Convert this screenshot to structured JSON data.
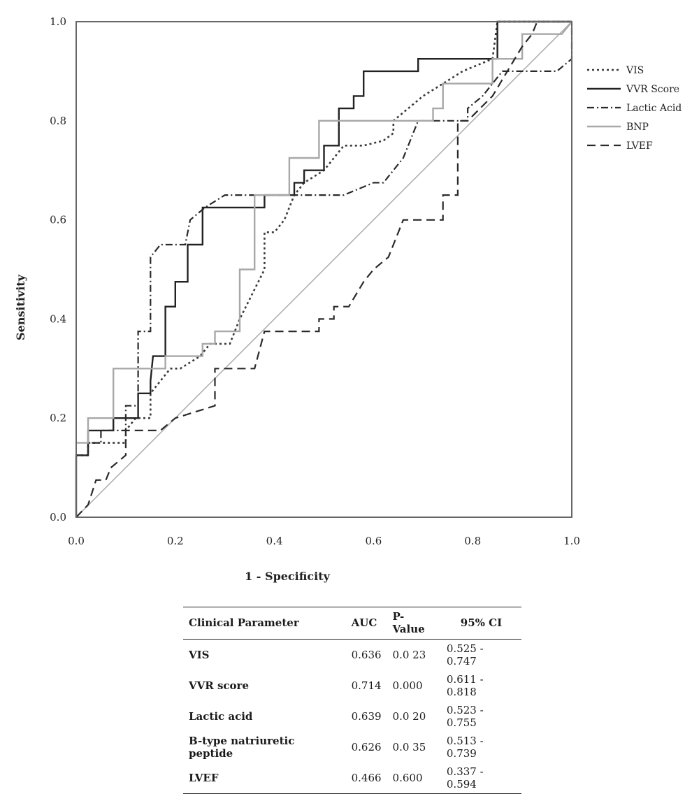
{
  "chart_data": {
    "type": "line",
    "xlabel": "1 - Specificity",
    "ylabel": "Sensitivity",
    "xlim": [
      0,
      1
    ],
    "ylim": [
      0,
      1
    ],
    "xticks": [
      "0.0",
      "0.2",
      "0.4",
      "0.6",
      "0.8",
      "1.0"
    ],
    "yticks": [
      "0.0",
      "0.2",
      "0.4",
      "0.6",
      "0.8",
      "1.0"
    ],
    "grid": false,
    "legend_position": "right",
    "series": [
      {
        "name": "VIS",
        "style": "dotted",
        "color": "#3a3a3a",
        "points": [
          [
            0,
            0.125
          ],
          [
            0.024,
            0.125
          ],
          [
            0.024,
            0.15
          ],
          [
            0.05,
            0.15
          ],
          [
            0.05,
            0.15
          ],
          [
            0.1,
            0.15
          ],
          [
            0.1,
            0.175
          ],
          [
            0.12,
            0.2
          ],
          [
            0.15,
            0.2
          ],
          [
            0.15,
            0.25
          ],
          [
            0.17,
            0.275
          ],
          [
            0.19,
            0.3
          ],
          [
            0.21,
            0.3
          ],
          [
            0.25,
            0.325
          ],
          [
            0.27,
            0.35
          ],
          [
            0.31,
            0.35
          ],
          [
            0.33,
            0.4
          ],
          [
            0.38,
            0.5
          ],
          [
            0.38,
            0.575
          ],
          [
            0.4,
            0.575
          ],
          [
            0.42,
            0.6
          ],
          [
            0.44,
            0.65
          ],
          [
            0.46,
            0.675
          ],
          [
            0.5,
            0.7
          ],
          [
            0.54,
            0.75
          ],
          [
            0.58,
            0.75
          ],
          [
            0.62,
            0.76
          ],
          [
            0.64,
            0.775
          ],
          [
            0.64,
            0.8
          ],
          [
            0.7,
            0.85
          ],
          [
            0.78,
            0.9
          ],
          [
            0.84,
            0.925
          ],
          [
            0.85,
            1.0
          ],
          [
            1.0,
            1.0
          ]
        ]
      },
      {
        "name": "VVR Score",
        "style": "solid",
        "color": "#222222",
        "points": [
          [
            0,
            0
          ],
          [
            0,
            0.125
          ],
          [
            0.024,
            0.125
          ],
          [
            0.024,
            0.175
          ],
          [
            0.075,
            0.175
          ],
          [
            0.075,
            0.2
          ],
          [
            0.1,
            0.2
          ],
          [
            0.125,
            0.2
          ],
          [
            0.125,
            0.25
          ],
          [
            0.15,
            0.25
          ],
          [
            0.15,
            0.275
          ],
          [
            0.155,
            0.325
          ],
          [
            0.18,
            0.325
          ],
          [
            0.18,
            0.425
          ],
          [
            0.2,
            0.425
          ],
          [
            0.2,
            0.475
          ],
          [
            0.225,
            0.475
          ],
          [
            0.225,
            0.55
          ],
          [
            0.255,
            0.55
          ],
          [
            0.255,
            0.625
          ],
          [
            0.38,
            0.625
          ],
          [
            0.38,
            0.65
          ],
          [
            0.44,
            0.65
          ],
          [
            0.44,
            0.675
          ],
          [
            0.46,
            0.675
          ],
          [
            0.46,
            0.7
          ],
          [
            0.5,
            0.7
          ],
          [
            0.5,
            0.75
          ],
          [
            0.52,
            0.75
          ],
          [
            0.53,
            0.75
          ],
          [
            0.53,
            0.825
          ],
          [
            0.56,
            0.825
          ],
          [
            0.56,
            0.85
          ],
          [
            0.58,
            0.85
          ],
          [
            0.58,
            0.9
          ],
          [
            0.69,
            0.9
          ],
          [
            0.69,
            0.925
          ],
          [
            0.85,
            0.925
          ],
          [
            0.85,
            1.0
          ],
          [
            1.0,
            1.0
          ]
        ]
      },
      {
        "name": "Lactic Acid",
        "style": "dashdot",
        "color": "#2a2a2a",
        "points": [
          [
            0,
            0.125
          ],
          [
            0.024,
            0.125
          ],
          [
            0.024,
            0.15
          ],
          [
            0.05,
            0.15
          ],
          [
            0.05,
            0.175
          ],
          [
            0.1,
            0.175
          ],
          [
            0.1,
            0.225
          ],
          [
            0.125,
            0.225
          ],
          [
            0.125,
            0.375
          ],
          [
            0.15,
            0.375
          ],
          [
            0.15,
            0.525
          ],
          [
            0.17,
            0.55
          ],
          [
            0.2,
            0.55
          ],
          [
            0.22,
            0.55
          ],
          [
            0.23,
            0.6
          ],
          [
            0.26,
            0.625
          ],
          [
            0.3,
            0.65
          ],
          [
            0.38,
            0.65
          ],
          [
            0.54,
            0.65
          ],
          [
            0.6,
            0.675
          ],
          [
            0.62,
            0.675
          ],
          [
            0.66,
            0.725
          ],
          [
            0.67,
            0.75
          ],
          [
            0.69,
            0.8
          ],
          [
            0.77,
            0.8
          ],
          [
            0.79,
            0.8
          ],
          [
            0.79,
            0.825
          ],
          [
            0.82,
            0.85
          ],
          [
            0.86,
            0.9
          ],
          [
            0.97,
            0.9
          ],
          [
            1.0,
            0.925
          ],
          [
            1.0,
            1.0
          ]
        ]
      },
      {
        "name": "BNP",
        "style": "solid",
        "color": "#a8a8a8",
        "points": [
          [
            0,
            0.15
          ],
          [
            0.024,
            0.15
          ],
          [
            0.024,
            0.2
          ],
          [
            0.075,
            0.2
          ],
          [
            0.075,
            0.3
          ],
          [
            0.18,
            0.3
          ],
          [
            0.18,
            0.325
          ],
          [
            0.255,
            0.325
          ],
          [
            0.255,
            0.35
          ],
          [
            0.28,
            0.35
          ],
          [
            0.28,
            0.375
          ],
          [
            0.33,
            0.375
          ],
          [
            0.33,
            0.5
          ],
          [
            0.36,
            0.5
          ],
          [
            0.36,
            0.65
          ],
          [
            0.43,
            0.65
          ],
          [
            0.43,
            0.725
          ],
          [
            0.49,
            0.725
          ],
          [
            0.49,
            0.8
          ],
          [
            0.72,
            0.8
          ],
          [
            0.72,
            0.825
          ],
          [
            0.74,
            0.825
          ],
          [
            0.74,
            0.875
          ],
          [
            0.84,
            0.875
          ],
          [
            0.84,
            0.925
          ],
          [
            0.9,
            0.925
          ],
          [
            0.9,
            0.975
          ],
          [
            0.98,
            0.975
          ],
          [
            1.0,
            1.0
          ]
        ]
      },
      {
        "name": "LVEF",
        "style": "dashed",
        "color": "#2a2a2a",
        "points": [
          [
            0,
            0
          ],
          [
            0.024,
            0.025
          ],
          [
            0.04,
            0.075
          ],
          [
            0.06,
            0.075
          ],
          [
            0.07,
            0.1
          ],
          [
            0.1,
            0.125
          ],
          [
            0.1,
            0.175
          ],
          [
            0.17,
            0.175
          ],
          [
            0.2,
            0.2
          ],
          [
            0.28,
            0.225
          ],
          [
            0.28,
            0.3
          ],
          [
            0.36,
            0.3
          ],
          [
            0.38,
            0.375
          ],
          [
            0.49,
            0.375
          ],
          [
            0.49,
            0.4
          ],
          [
            0.52,
            0.4
          ],
          [
            0.52,
            0.425
          ],
          [
            0.55,
            0.425
          ],
          [
            0.58,
            0.475
          ],
          [
            0.6,
            0.5
          ],
          [
            0.63,
            0.525
          ],
          [
            0.65,
            0.575
          ],
          [
            0.66,
            0.6
          ],
          [
            0.74,
            0.6
          ],
          [
            0.74,
            0.65
          ],
          [
            0.77,
            0.65
          ],
          [
            0.77,
            0.8
          ],
          [
            0.79,
            0.8
          ],
          [
            0.84,
            0.85
          ],
          [
            0.87,
            0.9
          ],
          [
            0.9,
            0.95
          ],
          [
            0.92,
            0.975
          ],
          [
            0.93,
            1.0
          ],
          [
            1.0,
            1.0
          ]
        ]
      }
    ]
  },
  "table": {
    "headers": [
      "Clinical Parameter",
      "AUC",
      "P-Value",
      "95% CI"
    ],
    "rows": [
      [
        "VIS",
        "0.636",
        "0.0 23",
        "0.525 - 0.747"
      ],
      [
        "VVR score",
        "0.714",
        "0.000",
        "0.611 - 0.818"
      ],
      [
        "Lactic acid",
        "0.639",
        "0.0 20",
        "0.523 - 0.755"
      ],
      [
        "B-type natriuretic peptide",
        "0.626",
        "0.0 35",
        "0.513 - 0.739"
      ],
      [
        "LVEF",
        "0.466",
        "0.600",
        "0.337 - 0.594"
      ]
    ]
  }
}
